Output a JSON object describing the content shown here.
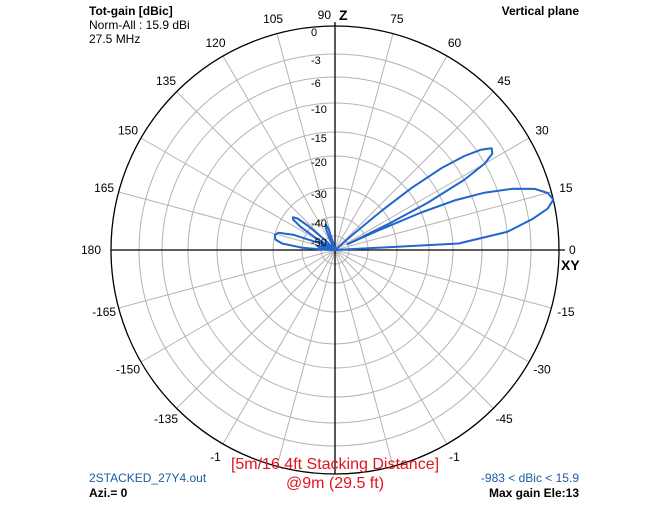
{
  "header": {
    "gain_label": "Tot-gain [dBic]",
    "norm_label": "Norm-All : 15.9 dBi",
    "freq_label": "27.5 MHz",
    "plane_label": "Vertical plane"
  },
  "footer": {
    "file_name": "2STACKED_27Y4.out",
    "azimuth": "Azi.= 0",
    "range_label": "-983 < dBic < 15.9",
    "max_gain": "Max gain Ele:13"
  },
  "caption": {
    "line1": "[5m/16.4ft Stacking Distance]",
    "line2": "@9m (29.5 ft)"
  },
  "axis_labels": {
    "z": "Z",
    "xy": "XY"
  },
  "colors": {
    "pattern": "#2266cc",
    "grid": "#b4b4b4",
    "axis": "#000000",
    "caption": "#e0141e",
    "footer_blue": "#1e5aa8"
  },
  "chart_data": {
    "type": "polar",
    "radial_ticks": [
      "0",
      "-3",
      "-6",
      "-10",
      "-15",
      "-20",
      "-30",
      "-40",
      "-50"
    ],
    "radial_db": [
      0,
      -3,
      -6,
      -10,
      -15,
      -20,
      -30,
      -40,
      -50
    ],
    "angle_ticks": [
      {
        "deg": 0,
        "label": "0"
      },
      {
        "deg": 15,
        "label": "15"
      },
      {
        "deg": 30,
        "label": "30"
      },
      {
        "deg": 45,
        "label": "45"
      },
      {
        "deg": 60,
        "label": "60"
      },
      {
        "deg": 75,
        "label": "75"
      },
      {
        "deg": 90,
        "label": "90"
      },
      {
        "deg": 105,
        "label": "105"
      },
      {
        "deg": 120,
        "label": "120"
      },
      {
        "deg": 135,
        "label": "135"
      },
      {
        "deg": 150,
        "label": "150"
      },
      {
        "deg": 165,
        "label": "165"
      },
      {
        "deg": 180,
        "label": "180"
      },
      {
        "deg": -15,
        "label": "-15"
      },
      {
        "deg": -30,
        "label": "-30"
      },
      {
        "deg": -45,
        "label": "-45"
      },
      {
        "deg": -60,
        "label": "-1"
      },
      {
        "deg": -75,
        "label": ""
      },
      {
        "deg": -90,
        "label": ""
      },
      {
        "deg": -105,
        "label": ""
      },
      {
        "deg": -120,
        "label": "-1"
      },
      {
        "deg": -135,
        "label": "-135"
      },
      {
        "deg": -150,
        "label": "-150"
      },
      {
        "deg": -165,
        "label": "-165"
      }
    ],
    "series": [
      {
        "points": [
          [
            0,
            -60
          ],
          [
            3,
            -14
          ],
          [
            6,
            -6
          ],
          [
            9,
            -2.5
          ],
          [
            11,
            -0.8
          ],
          [
            13,
            0
          ],
          [
            15,
            -0.4
          ],
          [
            17,
            -1.6
          ],
          [
            19,
            -4
          ],
          [
            21,
            -8
          ],
          [
            22.5,
            -13
          ],
          [
            23.5,
            -20
          ],
          [
            24.3,
            -35
          ],
          [
            25,
            -50
          ],
          [
            26,
            -30
          ],
          [
            27,
            -18
          ],
          [
            28.5,
            -10
          ],
          [
            30,
            -6
          ],
          [
            31.5,
            -4.5
          ],
          [
            33,
            -4.2
          ],
          [
            34.5,
            -5.5
          ],
          [
            36,
            -8
          ],
          [
            37.5,
            -12
          ],
          [
            39,
            -19
          ],
          [
            40,
            -30
          ],
          [
            41,
            -45
          ],
          [
            42,
            -60
          ],
          [
            70,
            -60
          ],
          [
            150,
            -60
          ],
          [
            155,
            -50
          ],
          [
            160,
            -36
          ],
          [
            163,
            -31
          ],
          [
            166,
            -30
          ],
          [
            170,
            -30.5
          ],
          [
            173,
            -33
          ],
          [
            176,
            -40
          ],
          [
            178,
            -52
          ],
          [
            180,
            -60
          ],
          [
            178,
            -60
          ],
          [
            176,
            -55
          ],
          [
            172,
            -50
          ],
          [
            168,
            -48
          ],
          [
            164,
            -50
          ],
          [
            160,
            -60
          ],
          [
            150,
            -60
          ],
          [
            148,
            -45
          ],
          [
            146,
            -37
          ],
          [
            144,
            -33.5
          ],
          [
            142,
            -33
          ],
          [
            140,
            -34.5
          ],
          [
            138,
            -39
          ],
          [
            135,
            -50
          ],
          [
            132,
            -60
          ],
          [
            120,
            -60
          ],
          [
            116,
            -52
          ],
          [
            113,
            -45
          ],
          [
            110,
            -43
          ],
          [
            107,
            -46
          ],
          [
            104,
            -55
          ],
          [
            100,
            -60
          ],
          [
            90,
            -60
          ],
          [
            80,
            -60
          ],
          [
            60,
            -60
          ],
          [
            30,
            -60
          ],
          [
            0,
            -60
          ]
        ]
      }
    ],
    "r_min_db": -60,
    "r_max_db": 0,
    "grid": true
  }
}
